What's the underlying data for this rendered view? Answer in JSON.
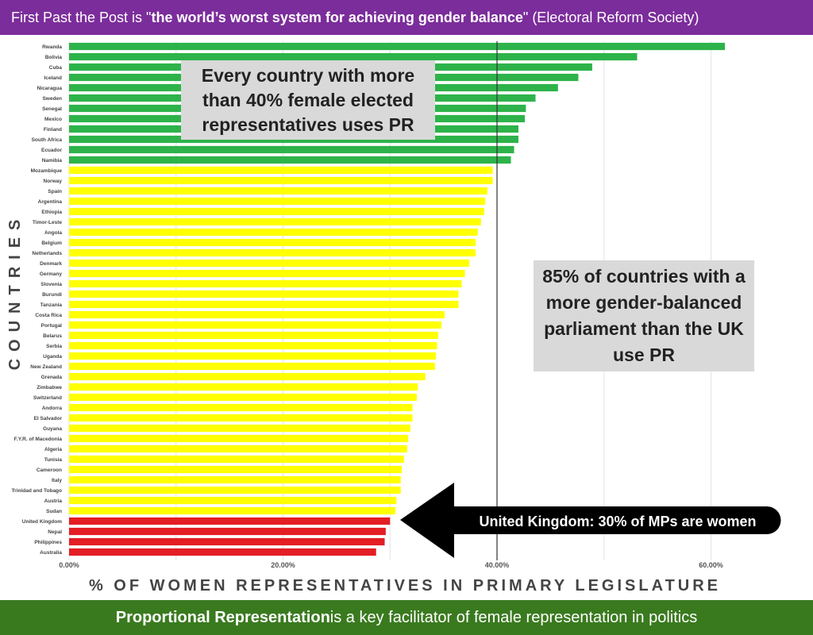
{
  "header": {
    "prefix": "First Past the Post is \"",
    "emphasis": "the world’s worst system for achieving gender balance",
    "suffix": "\" (Electoral Reform Society)"
  },
  "footer": {
    "emphasis": "Proportional Representation",
    "rest": " is a key facilitator of female representation in politics"
  },
  "callouts": {
    "pr_40": "Every country with more than 40% female elected representatives uses PR",
    "pr_85": "85% of countries with a more gender-balanced parliament than the UK use PR",
    "uk": "United Kingdom: 30% of MPs are women"
  },
  "colors": {
    "over_40_pr": "#2db34a",
    "above_uk": "#ffff00",
    "uk_and_below": "#e31e24",
    "header_bg": "#7b2d9b",
    "footer_bg": "#3a7a1f",
    "callout_bg": "#d9d9d9"
  },
  "chart_data": {
    "type": "bar",
    "orientation": "horizontal",
    "xlabel": "% OF WOMEN REPRESENTATIVES IN PRIMARY LEGISLATURE",
    "ylabel": "COUNTRIES",
    "xlim": [
      0,
      70
    ],
    "xticks": [
      0,
      20,
      40,
      60
    ],
    "xtick_labels": [
      "0.00%",
      "20.00%",
      "40.00%",
      "60.00%"
    ],
    "reference_line": 40,
    "categories": [
      "Rwanda",
      "Bolivia",
      "Cuba",
      "Iceland",
      "Nicaragua",
      "Sweden",
      "Senegal",
      "Mexico",
      "Finland",
      "South Africa",
      "Ecuador",
      "Namibia",
      "Mozambique",
      "Norway",
      "Spain",
      "Argentina",
      "Ethiopia",
      "Timor-Leste",
      "Angola",
      "Belgium",
      "Netherlands",
      "Denmark",
      "Germany",
      "Slovenia",
      "Burundi",
      "Tanzania",
      "Costa Rica",
      "Portugal",
      "Belarus",
      "Serbia",
      "Uganda",
      "New Zealand",
      "Grenada",
      "Zimbabwe",
      "Switzerland",
      "Andorra",
      "El Salvador",
      "Guyana",
      "F.Y.R. of Macedonia",
      "Algeria",
      "Tunisia",
      "Cameroon",
      "Italy",
      "Trinidad and Tobago",
      "Austria",
      "Sudan",
      "United Kingdom",
      "Nepal",
      "Philippines",
      "Australia"
    ],
    "values": [
      61.3,
      53.1,
      48.9,
      47.6,
      45.7,
      43.6,
      42.7,
      42.6,
      42.0,
      42.0,
      41.6,
      41.3,
      39.6,
      39.6,
      39.1,
      38.9,
      38.8,
      38.5,
      38.2,
      38.0,
      38.0,
      37.4,
      37.0,
      36.7,
      36.4,
      36.4,
      35.1,
      34.8,
      34.5,
      34.4,
      34.3,
      34.2,
      33.3,
      32.6,
      32.5,
      32.1,
      32.1,
      31.9,
      31.7,
      31.6,
      31.3,
      31.1,
      31.0,
      31.0,
      30.6,
      30.5,
      30.0,
      29.6,
      29.5,
      28.7
    ],
    "groups": [
      "over_40_pr",
      "over_40_pr",
      "over_40_pr",
      "over_40_pr",
      "over_40_pr",
      "over_40_pr",
      "over_40_pr",
      "over_40_pr",
      "over_40_pr",
      "over_40_pr",
      "over_40_pr",
      "over_40_pr",
      "above_uk",
      "above_uk",
      "above_uk",
      "above_uk",
      "above_uk",
      "above_uk",
      "above_uk",
      "above_uk",
      "above_uk",
      "above_uk",
      "above_uk",
      "above_uk",
      "above_uk",
      "above_uk",
      "above_uk",
      "above_uk",
      "above_uk",
      "above_uk",
      "above_uk",
      "above_uk",
      "above_uk",
      "above_uk",
      "above_uk",
      "above_uk",
      "above_uk",
      "above_uk",
      "above_uk",
      "above_uk",
      "above_uk",
      "above_uk",
      "above_uk",
      "above_uk",
      "above_uk",
      "above_uk",
      "uk_and_below",
      "uk_and_below",
      "uk_and_below",
      "uk_and_below"
    ]
  }
}
